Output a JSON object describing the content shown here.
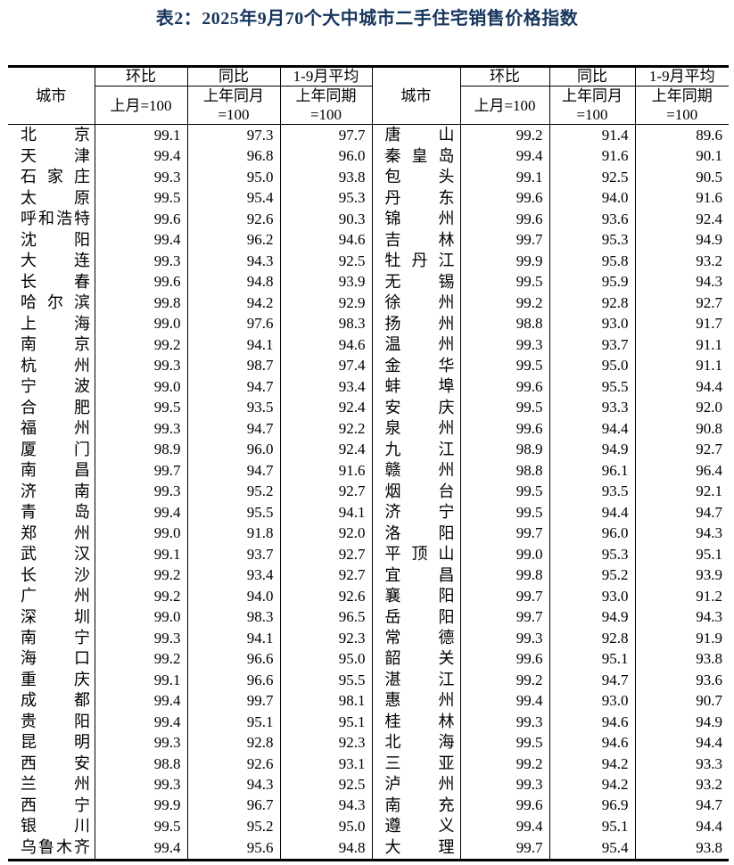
{
  "title": "表2：2025年9月70个大中城市二手住宅销售价格指数",
  "header": {
    "city_label": "城市",
    "mom_label": "环比",
    "yoy_label": "同比",
    "avg_label": "1-9月平均",
    "mom_base": "上月=100",
    "yoy_base": "上年同月=100",
    "avg_base": "上年同期=100"
  },
  "colors": {
    "title_text": "#17365D",
    "body_text": "#000000",
    "table_border": "#000000",
    "background": "#FFFFFF"
  },
  "table": {
    "left_rows": [
      {
        "city": "北京",
        "mom": "99.1",
        "yoy": "97.3",
        "avg": "97.7"
      },
      {
        "city": "天津",
        "mom": "99.4",
        "yoy": "96.8",
        "avg": "96.0"
      },
      {
        "city": "石家庄",
        "mom": "99.3",
        "yoy": "95.0",
        "avg": "93.8"
      },
      {
        "city": "太原",
        "mom": "99.5",
        "yoy": "95.4",
        "avg": "95.3"
      },
      {
        "city": "呼和浩特",
        "mom": "99.6",
        "yoy": "92.6",
        "avg": "90.3"
      },
      {
        "city": "沈阳",
        "mom": "99.4",
        "yoy": "96.2",
        "avg": "94.6"
      },
      {
        "city": "大连",
        "mom": "99.3",
        "yoy": "94.3",
        "avg": "92.5"
      },
      {
        "city": "长春",
        "mom": "99.6",
        "yoy": "94.8",
        "avg": "93.9"
      },
      {
        "city": "哈尔滨",
        "mom": "99.8",
        "yoy": "94.2",
        "avg": "92.9"
      },
      {
        "city": "上海",
        "mom": "99.0",
        "yoy": "97.6",
        "avg": "98.3"
      },
      {
        "city": "南京",
        "mom": "99.2",
        "yoy": "94.1",
        "avg": "94.6"
      },
      {
        "city": "杭州",
        "mom": "99.3",
        "yoy": "98.7",
        "avg": "97.4"
      },
      {
        "city": "宁波",
        "mom": "99.0",
        "yoy": "94.7",
        "avg": "93.4"
      },
      {
        "city": "合肥",
        "mom": "99.5",
        "yoy": "93.5",
        "avg": "92.4"
      },
      {
        "city": "福州",
        "mom": "99.3",
        "yoy": "94.7",
        "avg": "92.2"
      },
      {
        "city": "厦门",
        "mom": "98.9",
        "yoy": "96.0",
        "avg": "92.4"
      },
      {
        "city": "南昌",
        "mom": "99.7",
        "yoy": "94.7",
        "avg": "91.6"
      },
      {
        "city": "济南",
        "mom": "99.3",
        "yoy": "95.2",
        "avg": "92.7"
      },
      {
        "city": "青岛",
        "mom": "99.4",
        "yoy": "95.5",
        "avg": "94.1"
      },
      {
        "city": "郑州",
        "mom": "99.0",
        "yoy": "91.8",
        "avg": "92.0"
      },
      {
        "city": "武汉",
        "mom": "99.1",
        "yoy": "93.7",
        "avg": "92.7"
      },
      {
        "city": "长沙",
        "mom": "99.2",
        "yoy": "93.4",
        "avg": "92.7"
      },
      {
        "city": "广州",
        "mom": "99.2",
        "yoy": "94.0",
        "avg": "92.6"
      },
      {
        "city": "深圳",
        "mom": "99.0",
        "yoy": "98.3",
        "avg": "96.5"
      },
      {
        "city": "南宁",
        "mom": "99.3",
        "yoy": "94.1",
        "avg": "92.3"
      },
      {
        "city": "海口",
        "mom": "99.2",
        "yoy": "96.6",
        "avg": "95.0"
      },
      {
        "city": "重庆",
        "mom": "99.1",
        "yoy": "96.6",
        "avg": "95.5"
      },
      {
        "city": "成都",
        "mom": "99.4",
        "yoy": "99.7",
        "avg": "98.1"
      },
      {
        "city": "贵阳",
        "mom": "99.4",
        "yoy": "95.1",
        "avg": "95.1"
      },
      {
        "city": "昆明",
        "mom": "99.3",
        "yoy": "92.8",
        "avg": "92.3"
      },
      {
        "city": "西安",
        "mom": "98.8",
        "yoy": "92.6",
        "avg": "93.1"
      },
      {
        "city": "兰州",
        "mom": "99.3",
        "yoy": "94.3",
        "avg": "92.5"
      },
      {
        "city": "西宁",
        "mom": "99.9",
        "yoy": "96.7",
        "avg": "94.3"
      },
      {
        "city": "银川",
        "mom": "99.5",
        "yoy": "95.2",
        "avg": "95.0"
      },
      {
        "city": "乌鲁木齐",
        "mom": "99.4",
        "yoy": "95.6",
        "avg": "94.8"
      }
    ],
    "right_rows": [
      {
        "city": "唐山",
        "mom": "99.2",
        "yoy": "91.4",
        "avg": "89.6"
      },
      {
        "city": "秦皇岛",
        "mom": "99.4",
        "yoy": "91.6",
        "avg": "90.1"
      },
      {
        "city": "包头",
        "mom": "99.1",
        "yoy": "92.5",
        "avg": "90.5"
      },
      {
        "city": "丹东",
        "mom": "99.6",
        "yoy": "94.0",
        "avg": "91.6"
      },
      {
        "city": "锦州",
        "mom": "99.6",
        "yoy": "93.6",
        "avg": "92.4"
      },
      {
        "city": "吉林",
        "mom": "99.7",
        "yoy": "95.3",
        "avg": "94.9"
      },
      {
        "city": "牡丹江",
        "mom": "99.9",
        "yoy": "95.8",
        "avg": "93.2"
      },
      {
        "city": "无锡",
        "mom": "99.5",
        "yoy": "95.9",
        "avg": "94.3"
      },
      {
        "city": "徐州",
        "mom": "99.2",
        "yoy": "92.8",
        "avg": "92.7"
      },
      {
        "city": "扬州",
        "mom": "98.8",
        "yoy": "93.0",
        "avg": "91.7"
      },
      {
        "city": "温州",
        "mom": "99.3",
        "yoy": "93.7",
        "avg": "91.1"
      },
      {
        "city": "金华",
        "mom": "99.5",
        "yoy": "95.0",
        "avg": "91.1"
      },
      {
        "city": "蚌埠",
        "mom": "99.6",
        "yoy": "95.5",
        "avg": "94.4"
      },
      {
        "city": "安庆",
        "mom": "99.5",
        "yoy": "93.3",
        "avg": "92.0"
      },
      {
        "city": "泉州",
        "mom": "99.6",
        "yoy": "94.4",
        "avg": "90.8"
      },
      {
        "city": "九江",
        "mom": "98.9",
        "yoy": "94.9",
        "avg": "92.7"
      },
      {
        "city": "赣州",
        "mom": "98.8",
        "yoy": "96.1",
        "avg": "96.4"
      },
      {
        "city": "烟台",
        "mom": "99.5",
        "yoy": "93.5",
        "avg": "92.1"
      },
      {
        "city": "济宁",
        "mom": "99.5",
        "yoy": "94.4",
        "avg": "94.7"
      },
      {
        "city": "洛阳",
        "mom": "99.7",
        "yoy": "96.0",
        "avg": "94.3"
      },
      {
        "city": "平顶山",
        "mom": "99.0",
        "yoy": "95.3",
        "avg": "95.1"
      },
      {
        "city": "宜昌",
        "mom": "99.8",
        "yoy": "95.2",
        "avg": "93.9"
      },
      {
        "city": "襄阳",
        "mom": "99.7",
        "yoy": "93.0",
        "avg": "91.2"
      },
      {
        "city": "岳阳",
        "mom": "99.7",
        "yoy": "94.9",
        "avg": "94.3"
      },
      {
        "city": "常德",
        "mom": "99.3",
        "yoy": "92.8",
        "avg": "91.9"
      },
      {
        "city": "韶关",
        "mom": "99.6",
        "yoy": "95.1",
        "avg": "93.8"
      },
      {
        "city": "湛江",
        "mom": "99.2",
        "yoy": "94.7",
        "avg": "93.6"
      },
      {
        "city": "惠州",
        "mom": "99.4",
        "yoy": "93.0",
        "avg": "90.7"
      },
      {
        "city": "桂林",
        "mom": "99.3",
        "yoy": "94.6",
        "avg": "94.9"
      },
      {
        "city": "北海",
        "mom": "99.5",
        "yoy": "94.6",
        "avg": "94.4"
      },
      {
        "city": "三亚",
        "mom": "99.2",
        "yoy": "94.2",
        "avg": "93.3"
      },
      {
        "city": "泸州",
        "mom": "99.3",
        "yoy": "94.2",
        "avg": "93.2"
      },
      {
        "city": "南充",
        "mom": "99.6",
        "yoy": "96.9",
        "avg": "94.7"
      },
      {
        "city": "遵义",
        "mom": "99.4",
        "yoy": "95.1",
        "avg": "94.4"
      },
      {
        "city": "大理",
        "mom": "99.7",
        "yoy": "95.4",
        "avg": "93.8"
      }
    ]
  }
}
